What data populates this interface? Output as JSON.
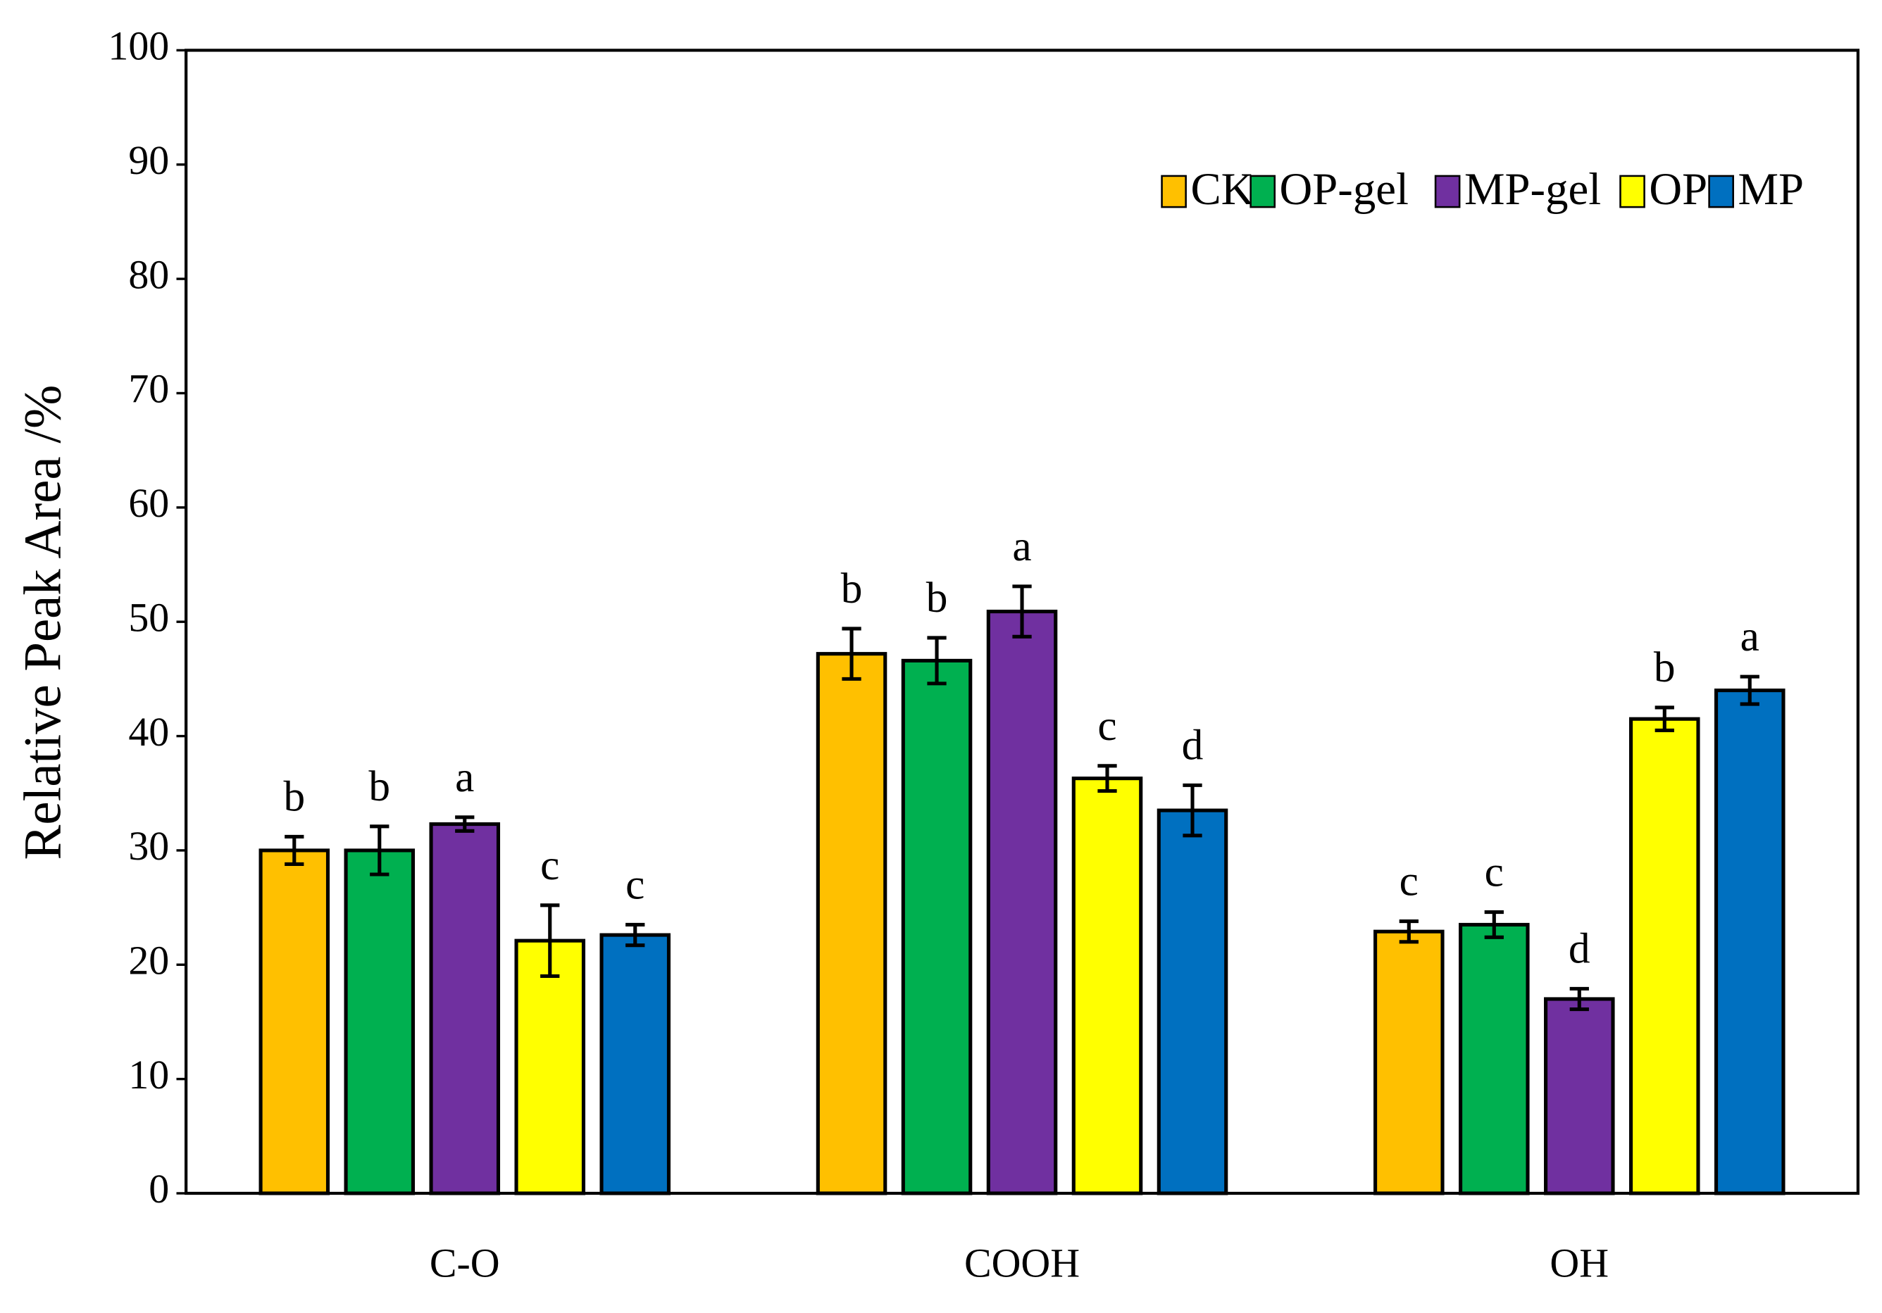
{
  "chart_data": {
    "type": "bar",
    "y_label": "Relative Peak Area /%",
    "categories": [
      "C-O",
      "COOH",
      "OH"
    ],
    "series": [
      {
        "name": "CK",
        "color": "#ffc000",
        "values": [
          30,
          47.2,
          22.9
        ],
        "errors": [
          1.2,
          2.2,
          0.9
        ],
        "letters": [
          "b",
          "b",
          "c"
        ]
      },
      {
        "name": "OP-gel",
        "color": "#00b050",
        "values": [
          30,
          46.6,
          23.5
        ],
        "errors": [
          2.1,
          2.0,
          1.1
        ],
        "letters": [
          "b",
          "b",
          "c"
        ]
      },
      {
        "name": "MP-gel",
        "color": "#7030a0",
        "values": [
          32.3,
          50.9,
          17
        ],
        "errors": [
          0.6,
          2.2,
          0.9
        ],
        "letters": [
          "a",
          "a",
          "d"
        ]
      },
      {
        "name": "OP",
        "color": "#ffff00",
        "values": [
          22.1,
          36.3,
          41.5
        ],
        "errors": [
          3.1,
          1.1,
          1.0
        ],
        "letters": [
          "c",
          "c",
          "b"
        ]
      },
      {
        "name": "MP",
        "color": "#0070c0",
        "values": [
          22.6,
          33.5,
          44
        ],
        "errors": [
          0.9,
          2.2,
          1.2
        ],
        "letters": [
          "c",
          "d",
          "a"
        ]
      }
    ],
    "ylim": [
      0,
      100
    ],
    "yticks": [
      0,
      10,
      20,
      30,
      40,
      50,
      60,
      70,
      80,
      90,
      100
    ],
    "legend": "top-right",
    "grid": false
  }
}
